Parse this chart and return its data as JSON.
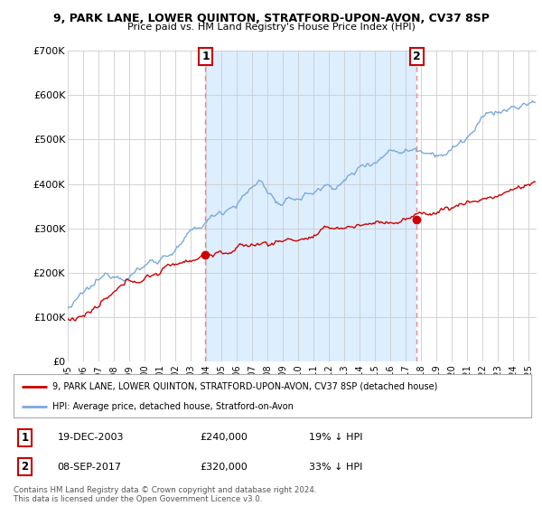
{
  "title1": "9, PARK LANE, LOWER QUINTON, STRATFORD-UPON-AVON, CV37 8SP",
  "title2": "Price paid vs. HM Land Registry's House Price Index (HPI)",
  "background_color": "#ffffff",
  "plot_bg_color": "#ffffff",
  "grid_color": "#cccccc",
  "hpi_color": "#7aaadd",
  "hpi_fill_color": "#ddeeff",
  "price_color": "#cc0000",
  "marker_color": "#cc0000",
  "dashed_line_color": "#ee8888",
  "yticks": [
    0,
    100000,
    200000,
    300000,
    400000,
    500000,
    600000,
    700000
  ],
  "ytick_labels": [
    "£0",
    "£100K",
    "£200K",
    "£300K",
    "£400K",
    "£500K",
    "£600K",
    "£700K"
  ],
  "sale1_date_x": 2003.96,
  "sale1_price": 240000,
  "sale1_label": "1",
  "sale2_date_x": 2017.69,
  "sale2_price": 320000,
  "sale2_label": "2",
  "legend_line1": "9, PARK LANE, LOWER QUINTON, STRATFORD-UPON-AVON, CV37 8SP (detached house)",
  "legend_line2": "HPI: Average price, detached house, Stratford-on-Avon",
  "table_row1_num": "1",
  "table_row1_date": "19-DEC-2003",
  "table_row1_price": "£240,000",
  "table_row1_hpi": "19% ↓ HPI",
  "table_row2_num": "2",
  "table_row2_date": "08-SEP-2017",
  "table_row2_price": "£320,000",
  "table_row2_hpi": "33% ↓ HPI",
  "footer": "Contains HM Land Registry data © Crown copyright and database right 2024.\nThis data is licensed under the Open Government Licence v3.0.",
  "xmin": 1995.0,
  "xmax": 2025.5,
  "ymin": 0,
  "ymax": 700000
}
